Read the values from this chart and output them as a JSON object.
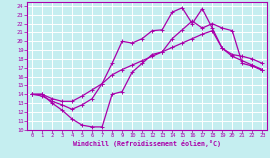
{
  "title": "",
  "xlabel": "Windchill (Refroidissement éolien,°C)",
  "bg_color": "#c5eef0",
  "line_color": "#aa00aa",
  "grid_color": "#aadddd",
  "xlim": [
    -0.5,
    23.5
  ],
  "ylim": [
    10,
    24.5
  ],
  "xticks": [
    0,
    1,
    2,
    3,
    4,
    5,
    6,
    7,
    8,
    9,
    10,
    11,
    12,
    13,
    14,
    15,
    16,
    17,
    18,
    19,
    20,
    21,
    22,
    23
  ],
  "yticks": [
    10,
    11,
    12,
    13,
    14,
    15,
    16,
    17,
    18,
    19,
    20,
    21,
    22,
    23,
    24
  ],
  "line1_x": [
    0,
    1,
    2,
    3,
    4,
    5,
    6,
    7,
    8,
    9,
    10,
    11,
    12,
    13,
    14,
    15,
    16,
    17,
    18,
    19,
    20,
    21,
    22,
    23
  ],
  "line1_y": [
    14,
    14,
    13,
    12.2,
    11.2,
    10.5,
    10.3,
    10.3,
    14,
    14.3,
    16.5,
    17.5,
    18.5,
    18.8,
    20.3,
    21.3,
    22.3,
    21.5,
    22,
    21.5,
    21.2,
    17.5,
    17.2,
    16.7
  ],
  "line2_x": [
    0,
    1,
    2,
    3,
    4,
    5,
    6,
    7,
    8,
    9,
    10,
    11,
    12,
    13,
    14,
    15,
    16,
    17,
    18,
    19,
    20,
    21,
    22,
    23
  ],
  "line2_y": [
    14,
    14,
    13.5,
    13.2,
    13.2,
    13.8,
    14.5,
    15.2,
    16.2,
    16.8,
    17.3,
    17.8,
    18.3,
    18.8,
    19.3,
    19.8,
    20.3,
    20.8,
    21.2,
    19.2,
    18.3,
    17.8,
    17.3,
    16.8
  ],
  "line3_x": [
    0,
    1,
    2,
    3,
    4,
    5,
    6,
    7,
    8,
    9,
    10,
    11,
    12,
    13,
    14,
    15,
    16,
    17,
    18,
    19,
    20,
    21,
    22,
    23
  ],
  "line3_y": [
    14,
    13.8,
    13.2,
    12.8,
    12.3,
    12.8,
    13.5,
    15.2,
    17.5,
    20,
    19.8,
    20.3,
    21.2,
    21.3,
    23.3,
    23.8,
    22.0,
    23.7,
    21.5,
    19.2,
    18.5,
    18.3,
    18.0,
    17.5
  ]
}
